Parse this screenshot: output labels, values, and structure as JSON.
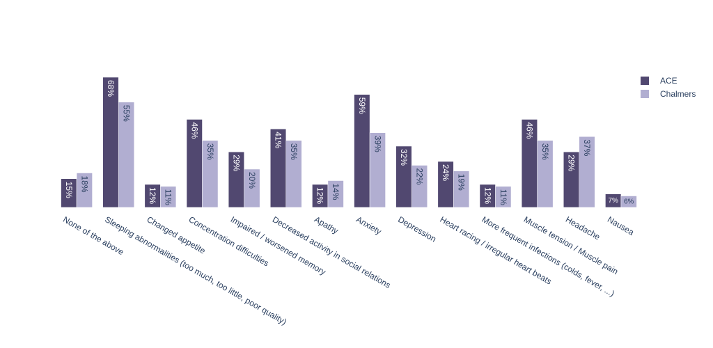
{
  "chart_data": {
    "type": "bar",
    "title": "",
    "xlabel": "",
    "ylabel": "",
    "ylim": [
      0,
      70
    ],
    "grid": false,
    "legend_position": "top-right",
    "categories": [
      "None of the above",
      "Sleeping abnormalities (too much, too little, poor quality)",
      "Changed appetite",
      "Concentration difficulties",
      "Impaired / worsened memory",
      "Decreased  activity in social relations",
      "Apathy",
      "Anxiety",
      "Depression",
      "Heart racing / irregular heart beats",
      "More frequent infections (colds, fever, ...)",
      "Muscle tension / Muscle pain",
      "Headache",
      "Nausea"
    ],
    "series": [
      {
        "name": "ACE",
        "color": "#514870",
        "values": [
          15,
          68,
          12,
          46,
          29,
          41,
          12,
          59,
          32,
          24,
          12,
          46,
          29,
          7
        ],
        "labels": [
          "15%",
          "68%",
          "12%",
          "46%",
          "29%",
          "41%",
          "12%",
          "59%",
          "32%",
          "24%",
          "12%",
          "46%",
          "29%",
          "7%"
        ]
      },
      {
        "name": "Chalmers",
        "color": "#b1aed1",
        "values": [
          18,
          55,
          11,
          35,
          20,
          35,
          14,
          39,
          22,
          19,
          11,
          35,
          37,
          6
        ],
        "labels": [
          "18%",
          "55%",
          "11%",
          "35%",
          "20%",
          "35%",
          "14%",
          "39%",
          "22%",
          "19%",
          "11%",
          "35%",
          "37%",
          "6%"
        ]
      }
    ]
  }
}
